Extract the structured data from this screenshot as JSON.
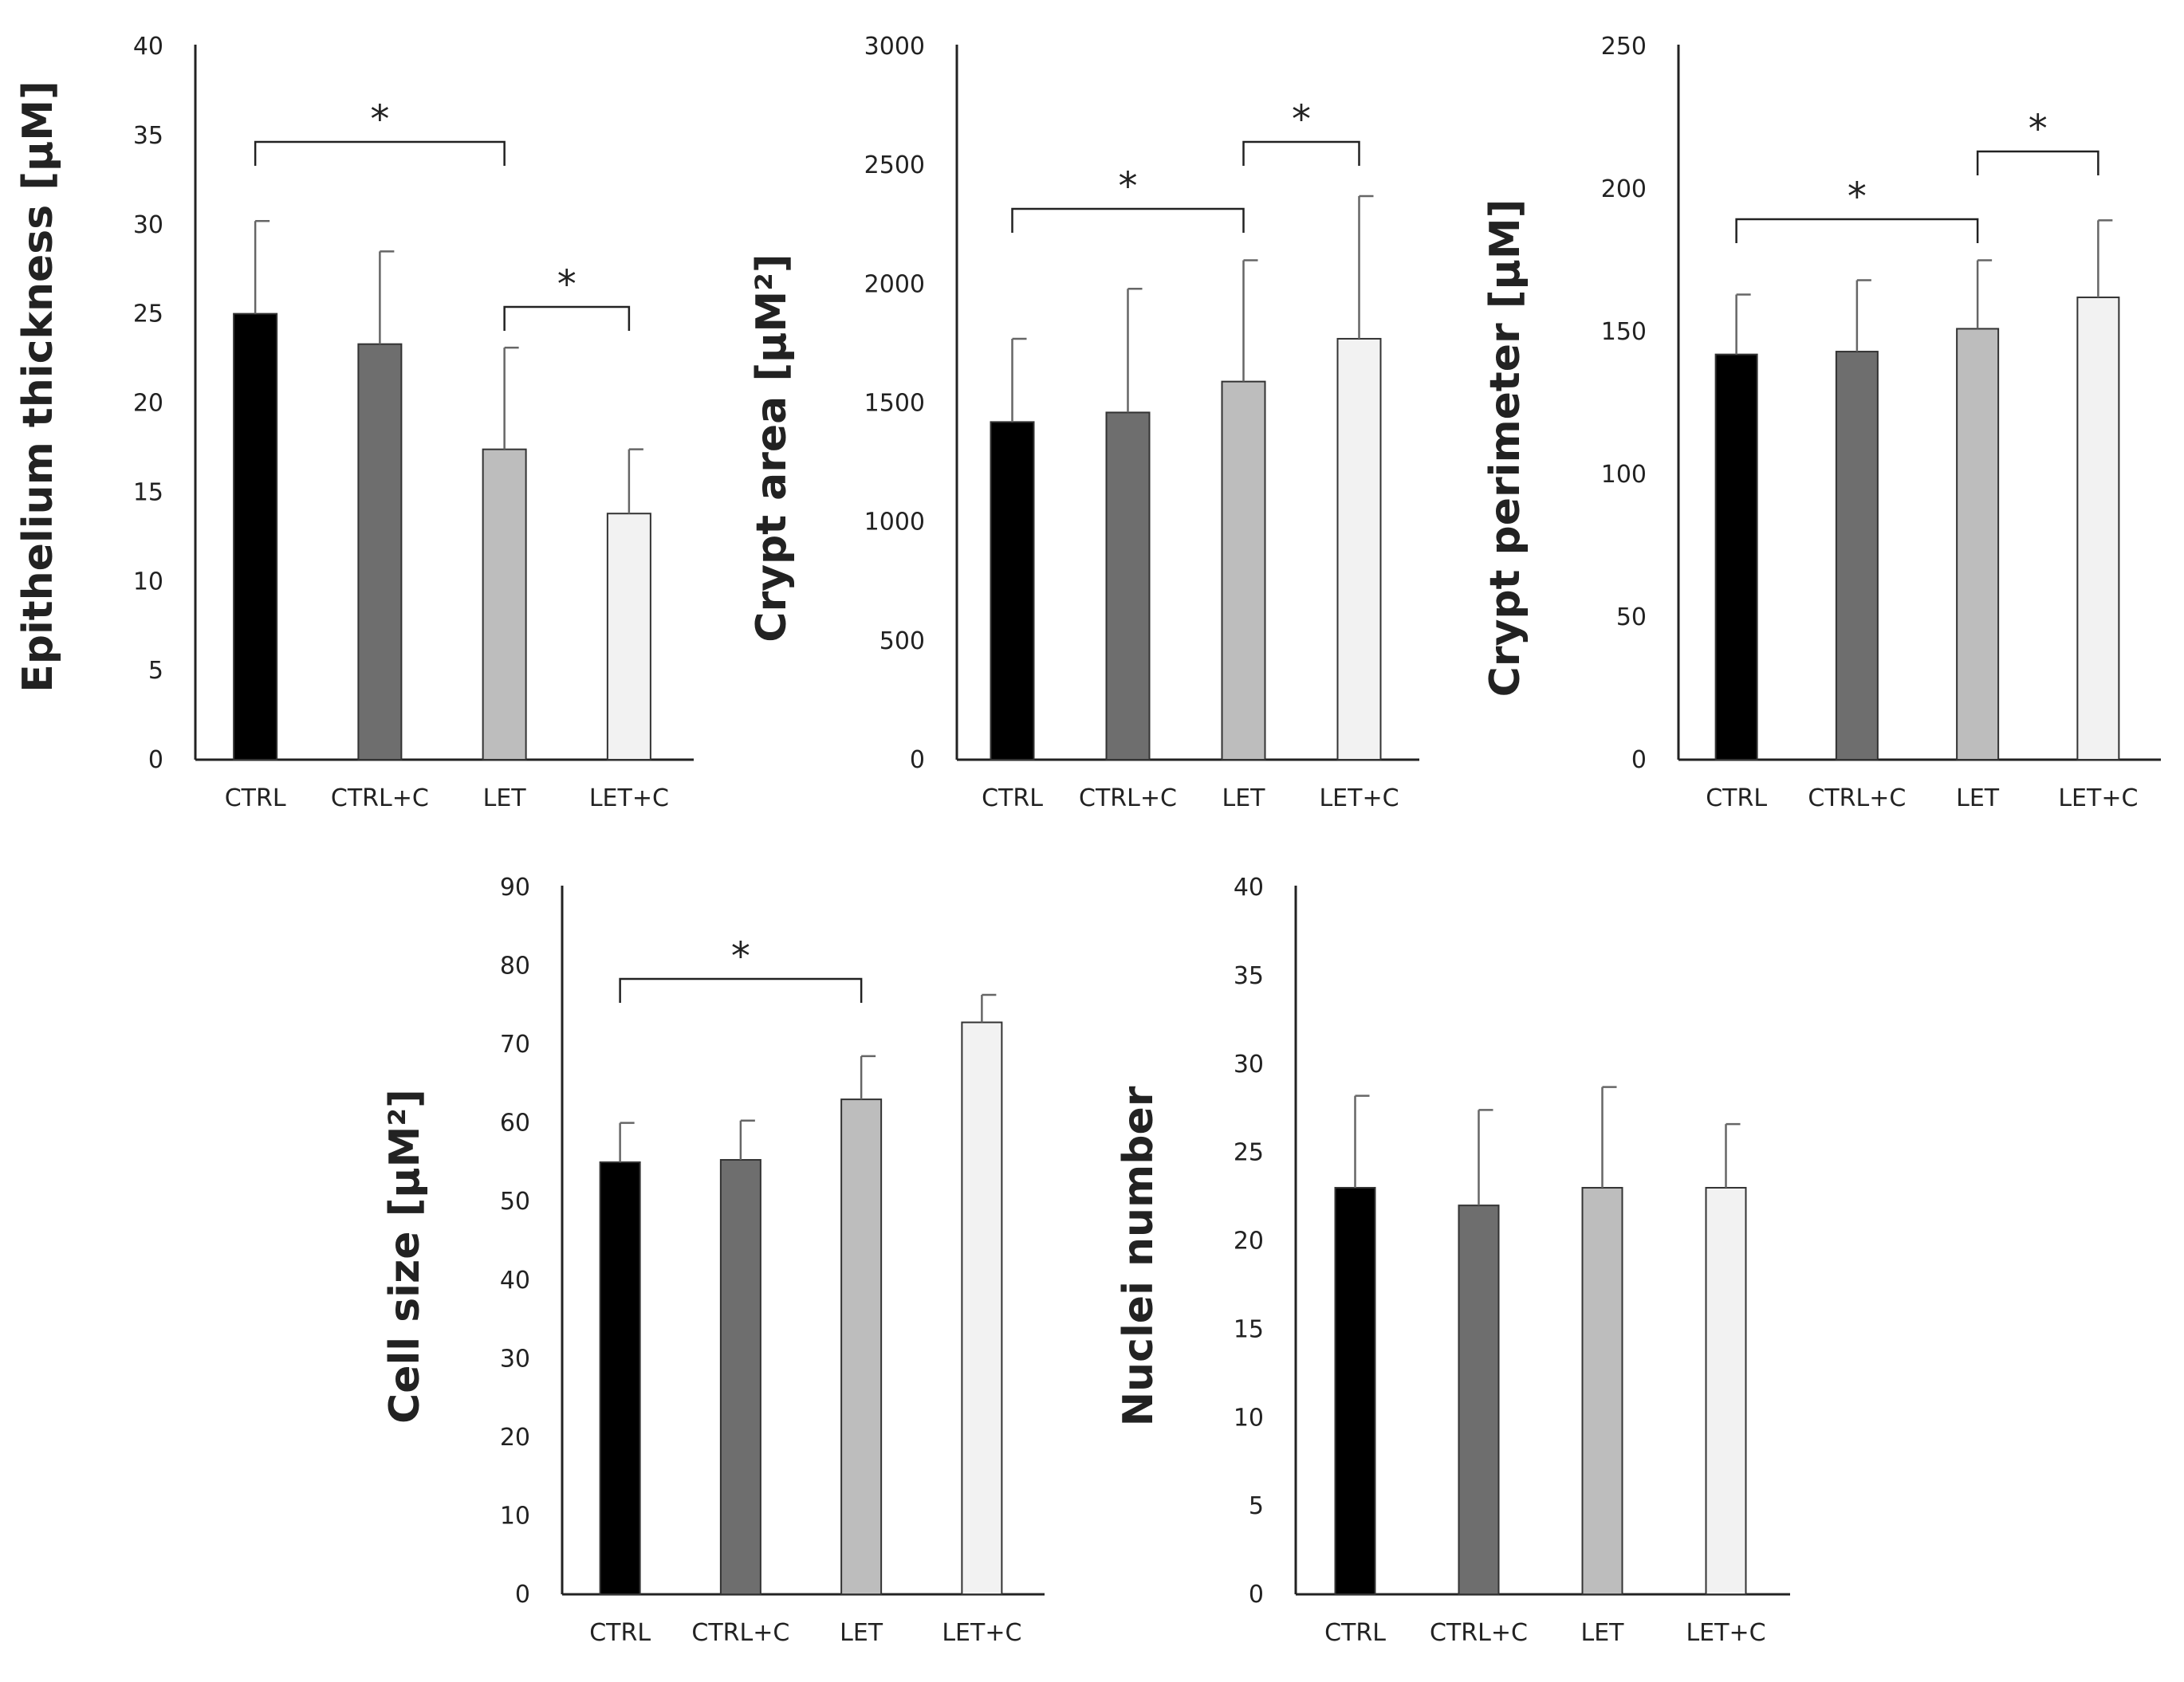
{
  "chart_data": [
    {
      "type": "bar",
      "categories": [
        "CTRL",
        "CTRL+C",
        "LET",
        "LET+C"
      ],
      "values": [
        25,
        23.3,
        17.4,
        13.8
      ],
      "errors": [
        5.2,
        5.2,
        5.7,
        3.6
      ],
      "ylabel": "Epithelium  thickness [µM]",
      "ylim": [
        0,
        40
      ],
      "yticks": [
        0,
        5,
        10,
        15,
        20,
        25,
        30,
        35,
        40
      ],
      "significance": [
        {
          "from": 0,
          "to": 2,
          "label": "*"
        },
        {
          "from": 2,
          "to": 3,
          "label": "*"
        }
      ]
    },
    {
      "type": "bar",
      "categories": [
        "CTRL",
        "CTRL+C",
        "LET",
        "LET+C"
      ],
      "values": [
        1420,
        1460,
        1590,
        1770
      ],
      "errors": [
        350,
        520,
        510,
        600
      ],
      "ylabel": "Crypt  area [µM²]",
      "ylim": [
        0,
        3000
      ],
      "yticks": [
        0,
        500,
        1000,
        1500,
        2000,
        2500,
        3000
      ],
      "significance": [
        {
          "from": 0,
          "to": 2,
          "label": "*"
        },
        {
          "from": 2,
          "to": 3,
          "label": "*"
        }
      ]
    },
    {
      "type": "bar",
      "categories": [
        "CTRL",
        "CTRL+C",
        "LET",
        "LET+C"
      ],
      "values": [
        142,
        143,
        151,
        162
      ],
      "errors": [
        21,
        25,
        24,
        27
      ],
      "ylabel": "Crypt  perimeter  [µM]",
      "ylim": [
        0,
        250
      ],
      "yticks": [
        0,
        50,
        100,
        150,
        200,
        250
      ],
      "significance": [
        {
          "from": 0,
          "to": 2,
          "label": "*"
        },
        {
          "from": 2,
          "to": 3,
          "label": "*"
        }
      ]
    },
    {
      "type": "bar",
      "categories": [
        "CTRL",
        "CTRL+C",
        "LET",
        "LET+C"
      ],
      "values": [
        55,
        55.3,
        63,
        72.8
      ],
      "errors": [
        5,
        5,
        5.5,
        3.5
      ],
      "ylabel": "Cell size [µM²]",
      "ylim": [
        0,
        90
      ],
      "yticks": [
        0,
        10,
        20,
        30,
        40,
        50,
        60,
        70,
        80,
        90
      ],
      "significance": [
        {
          "from": 0,
          "to": 2,
          "label": "*"
        }
      ]
    },
    {
      "type": "bar",
      "categories": [
        "CTRL",
        "CTRL+C",
        "LET",
        "LET+C"
      ],
      "values": [
        23,
        22,
        23,
        23
      ],
      "errors": [
        5.2,
        5.4,
        5.7,
        3.6
      ],
      "ylabel": "Nuclei number",
      "ylim": [
        0,
        40
      ],
      "yticks": [
        0,
        5,
        10,
        15,
        20,
        25,
        30,
        35,
        40
      ],
      "significance": []
    }
  ],
  "colors": {
    "bars": [
      "#000000",
      "#6e6e6e",
      "#bdbdbd",
      "#f2f2f2"
    ],
    "axis": "#222222",
    "error": "#666666"
  }
}
